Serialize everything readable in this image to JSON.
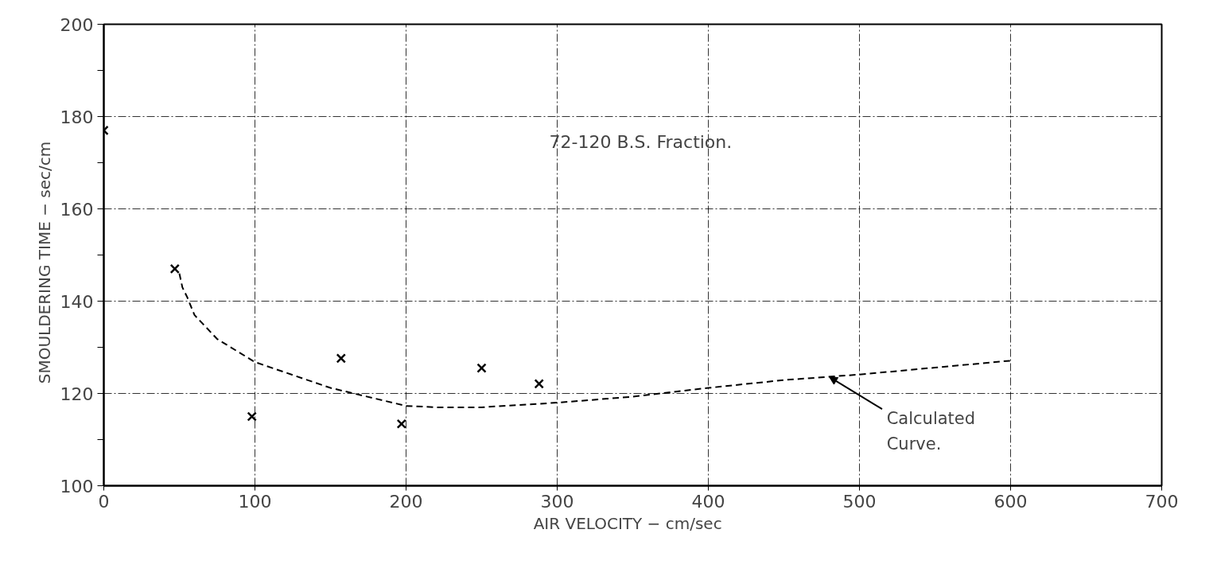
{
  "chart_data": {
    "type": "scatter",
    "xlabel": "AIR  VELOCITY  − cm/sec",
    "ylabel": "SMOULDERING  TIME  −  sec/cm",
    "xlim": [
      0,
      700
    ],
    "ylim": [
      100,
      200
    ],
    "xticks": [
      0,
      100,
      200,
      300,
      400,
      500,
      600,
      700
    ],
    "yticks": [
      100,
      {
        "value": 110,
        "label": null
      },
      120,
      {
        "value": 130,
        "label": null
      },
      140,
      {
        "value": 150,
        "label": null
      },
      160,
      {
        "value": 170,
        "label": null
      },
      180,
      {
        "value": 190,
        "label": null
      },
      200
    ],
    "grid": true,
    "series": [
      {
        "marker": "cross",
        "color": "#000000",
        "x": [
          0,
          47,
          98,
          157,
          197,
          250,
          288
        ],
        "values": [
          177,
          147,
          115,
          127.6,
          113.4,
          125.5,
          122.1
        ]
      },
      {
        "type": "line",
        "line_style": "dashed",
        "marker": "none",
        "color": "#000000",
        "x": [
          50,
          52,
          55,
          60,
          75,
          100,
          150,
          200,
          220,
          250,
          300,
          350,
          400,
          450,
          500,
          550,
          600
        ],
        "values": [
          146,
          143,
          141,
          137,
          131.8,
          126.8,
          121.2,
          117.3,
          117,
          117,
          118,
          119.3,
          121.2,
          122.9,
          124.1,
          125.6,
          127.1
        ]
      }
    ],
    "annotations": [
      "72-120  B.S. Fraction.",
      {
        "text": "Calculated\nCurve.",
        "x": 480,
        "y": 123.6
      }
    ]
  }
}
